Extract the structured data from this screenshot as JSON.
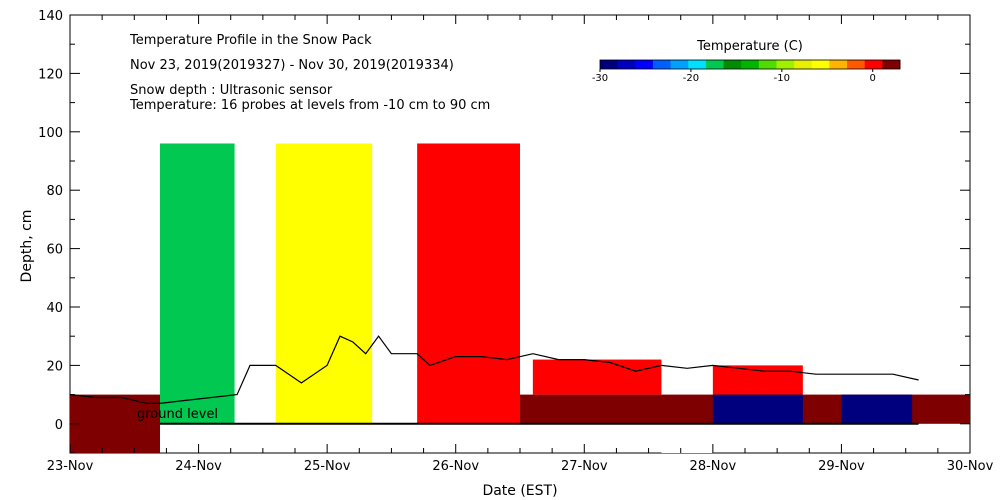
{
  "chart_data": {
    "type": "heatmap",
    "title": "Temperature Profile in the Snow Pack",
    "subtitle": "Nov 23, 2019(2019327) - Nov 30, 2019(2019334)",
    "notes": [
      "Snow depth : Ultrasonic sensor",
      "Temperature: 16 probes at levels from -10 cm to 90 cm"
    ],
    "ground_label": "ground level",
    "xlabel": "Date (EST)",
    "ylabel": "Depth, cm",
    "x_ticks": [
      "23-Nov",
      "24-Nov",
      "25-Nov",
      "26-Nov",
      "27-Nov",
      "28-Nov",
      "29-Nov",
      "30-Nov"
    ],
    "xlim_days": [
      0,
      7
    ],
    "ylim": [
      -10,
      140
    ],
    "y_ticks": [
      0,
      20,
      40,
      60,
      80,
      100,
      120,
      140
    ],
    "colorbar": {
      "title": "Temperature (C)",
      "range": [
        -30,
        3
      ],
      "ticks": [
        -30,
        -20,
        -10,
        0
      ],
      "colors": [
        "#00007f",
        "#0000bf",
        "#0000ff",
        "#0060ff",
        "#00a0ff",
        "#00e0ff",
        "#00c850",
        "#008c00",
        "#00b400",
        "#50dc00",
        "#a0f000",
        "#e6f000",
        "#ffff00",
        "#ffb400",
        "#ff5a00",
        "#ff0000",
        "#7f0000"
      ]
    },
    "temperature_blocks": [
      {
        "x0": 0.0,
        "x1": 0.7,
        "y0": -10,
        "y1": 10,
        "color": "#7f0000"
      },
      {
        "x0": 0.7,
        "x1": 1.28,
        "y0": 0,
        "y1": 96,
        "color": "#00c850"
      },
      {
        "x0": 1.6,
        "x1": 2.35,
        "y0": 0,
        "y1": 96,
        "color": "#ffff00"
      },
      {
        "x0": 2.7,
        "x1": 3.5,
        "y0": 0,
        "y1": 96,
        "color": "#ff0000"
      },
      {
        "x0": 3.5,
        "x1": 7.0,
        "y0": 0,
        "y1": 10,
        "color": "#7f0000"
      },
      {
        "x0": 3.6,
        "x1": 4.6,
        "y0": 10,
        "y1": 22,
        "color": "#ff0000"
      },
      {
        "x0": 4.6,
        "x1": 5.0,
        "y0": -10,
        "y1": 0,
        "color": "#ffffff"
      },
      {
        "x0": 5.0,
        "x1": 5.7,
        "y0": 10,
        "y1": 20,
        "color": "#ff0000"
      },
      {
        "x0": 5.0,
        "x1": 5.7,
        "y0": 0,
        "y1": 10,
        "color": "#00007f"
      },
      {
        "x0": 6.0,
        "x1": 6.55,
        "y0": 0,
        "y1": 10,
        "color": "#00007f"
      }
    ],
    "snow_depth_series": [
      [
        0.0,
        10
      ],
      [
        0.2,
        9
      ],
      [
        0.4,
        9
      ],
      [
        0.6,
        7
      ],
      [
        0.7,
        7
      ],
      [
        0.9,
        8
      ],
      [
        1.1,
        9
      ],
      [
        1.3,
        10
      ],
      [
        1.4,
        20
      ],
      [
        1.6,
        20
      ],
      [
        1.8,
        14
      ],
      [
        2.0,
        20
      ],
      [
        2.1,
        30
      ],
      [
        2.2,
        28
      ],
      [
        2.3,
        24
      ],
      [
        2.4,
        30
      ],
      [
        2.5,
        24
      ],
      [
        2.7,
        24
      ],
      [
        2.8,
        20
      ],
      [
        3.0,
        23
      ],
      [
        3.2,
        23
      ],
      [
        3.4,
        22
      ],
      [
        3.6,
        24
      ],
      [
        3.8,
        22
      ],
      [
        4.0,
        22
      ],
      [
        4.2,
        21
      ],
      [
        4.4,
        18
      ],
      [
        4.6,
        20
      ],
      [
        4.8,
        19
      ],
      [
        5.0,
        20
      ],
      [
        5.2,
        19
      ],
      [
        5.4,
        18
      ],
      [
        5.6,
        18
      ],
      [
        5.8,
        17
      ],
      [
        6.0,
        17
      ],
      [
        6.2,
        17
      ],
      [
        6.4,
        17
      ],
      [
        6.6,
        15
      ]
    ]
  }
}
